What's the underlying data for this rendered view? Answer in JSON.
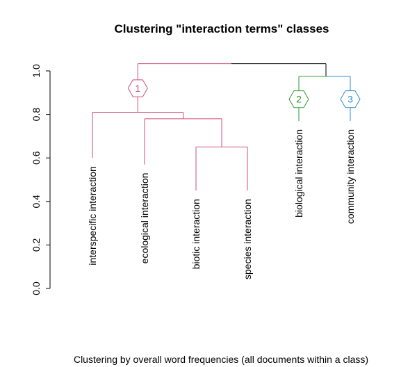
{
  "chart_data": {
    "type": "dendrogram",
    "title": "Clustering \"interaction terms\" classes",
    "xlabel": "Clustering by overall word frequencies (all documents within a class)",
    "ylabel": "",
    "ylim": [
      0,
      1
    ],
    "yticks": [
      "0.0",
      "0.2",
      "0.4",
      "0.6",
      "0.8",
      "1.0"
    ],
    "leaves": [
      {
        "label": "interspecific interaction",
        "cluster": 1
      },
      {
        "label": "ecological interaction",
        "cluster": 1
      },
      {
        "label": "biotic interaction",
        "cluster": 1
      },
      {
        "label": "species interaction",
        "cluster": 1
      },
      {
        "label": "biological interaction",
        "cluster": 2
      },
      {
        "label": "community interaction",
        "cluster": 3
      }
    ],
    "merges": [
      {
        "left": "biotic interaction",
        "right": "species interaction",
        "height": 0.65,
        "cluster": 1
      },
      {
        "left": "ecological interaction",
        "right": "[biotic, species]",
        "height": 0.78,
        "cluster": 1
      },
      {
        "left": "interspecific interaction",
        "right": "[ecological, biotic, species]",
        "height": 0.81,
        "cluster": 1
      },
      {
        "left": "biological interaction",
        "right": "community interaction",
        "height": 0.975,
        "cluster": null
      },
      {
        "left": "cluster 1",
        "right": "[biological, community]",
        "height": 1.033,
        "cluster": null
      }
    ],
    "leaf_heights": [
      0.6,
      0.57,
      0.45,
      0.45,
      0.77,
      0.77
    ],
    "clusters": [
      {
        "id": "1",
        "color": "#CD4E7B",
        "label_height": 0.92
      },
      {
        "id": "2",
        "color": "#2E9A2E",
        "label_height": 0.87
      },
      {
        "id": "3",
        "color": "#2A8CD0",
        "label_height": 0.87
      }
    ],
    "root_color": "#000000"
  }
}
